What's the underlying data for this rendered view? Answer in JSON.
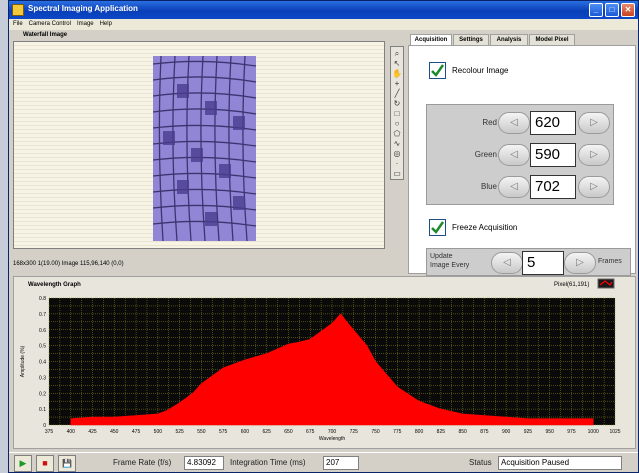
{
  "window": {
    "title": "Spectral Imaging Application",
    "minimize": "_",
    "maximize": "□",
    "close": "✕"
  },
  "menu": [
    "File",
    "Camera Control",
    "Image",
    "Help"
  ],
  "waterfall": {
    "label": "Waterfall Image",
    "status": "168x300 1(19.00) Image 115,96,140   (0,0)"
  },
  "toolbar_icons": [
    "zoom-icon",
    "pointer-icon",
    "pan-icon",
    "crosshair-icon",
    "line-icon",
    "rotate-icon",
    "rectangle-icon",
    "oval-icon",
    "polygon-icon",
    "freehand-icon",
    "annulus-icon",
    "point-icon",
    "text-icon"
  ],
  "tabs": [
    {
      "label": "Acquisition",
      "active": true
    },
    {
      "label": "Settings",
      "active": false
    },
    {
      "label": "Analysis",
      "active": false
    },
    {
      "label": "Model Pixel",
      "active": false
    }
  ],
  "acquisition": {
    "recolour_label": "Recolour Image",
    "recolour_checked": true,
    "channels": [
      {
        "name": "Red",
        "value": "620"
      },
      {
        "name": "Green",
        "value": "590"
      },
      {
        "name": "Blue",
        "value": "702"
      }
    ],
    "freeze_label": "Freeze Acquisition",
    "freeze_checked": true,
    "update_label_1": "Update",
    "update_label_2": "Image Every",
    "update_value": "5",
    "frames_label": "Frames"
  },
  "graph": {
    "label": "Wavelength Graph",
    "pixel_readout": "Pixel(61,191)",
    "plot_bg": "#0a0a0a",
    "grid_color": "#8a8a1a",
    "fill_color": "#ff0000"
  },
  "chart_data": {
    "type": "area",
    "title": "",
    "xlabel": "Wavelength",
    "ylabel": "Amplitude (%)",
    "xlim": [
      375,
      1025
    ],
    "ylim": [
      0,
      0.8
    ],
    "xticks": [
      375,
      400,
      425,
      450,
      475,
      500,
      525,
      550,
      575,
      600,
      625,
      650,
      675,
      700,
      725,
      750,
      775,
      800,
      825,
      850,
      875,
      900,
      925,
      950,
      975,
      1000,
      1025
    ],
    "yticks": [
      0,
      0.1,
      0.2,
      0.3,
      0.4,
      0.5,
      0.6,
      0.7,
      0.8
    ],
    "grid": true,
    "series": [
      {
        "x": [
          400,
          425,
          450,
          475,
          500,
          510,
          525,
          540,
          550,
          575,
          600,
          625,
          650,
          660,
          675,
          690,
          700,
          710,
          720,
          740,
          750,
          775,
          800,
          825,
          850,
          875,
          900,
          925,
          950,
          975,
          1000
        ],
        "y": [
          0.04,
          0.05,
          0.05,
          0.06,
          0.07,
          0.09,
          0.14,
          0.2,
          0.26,
          0.36,
          0.41,
          0.45,
          0.51,
          0.52,
          0.54,
          0.6,
          0.64,
          0.7,
          0.63,
          0.5,
          0.4,
          0.24,
          0.15,
          0.1,
          0.07,
          0.06,
          0.05,
          0.04,
          0.04,
          0.04,
          0.04
        ]
      }
    ]
  },
  "bottom": {
    "play_icon": "▶",
    "stop_icon": "■",
    "save_icon": "💾",
    "frame_rate_label": "Frame Rate (f/s)",
    "frame_rate_value": "4.83092",
    "integration_label": "Integration Time (ms)",
    "integration_value": "207",
    "status_label": "Status",
    "status_value": "Acquisition Paused"
  }
}
